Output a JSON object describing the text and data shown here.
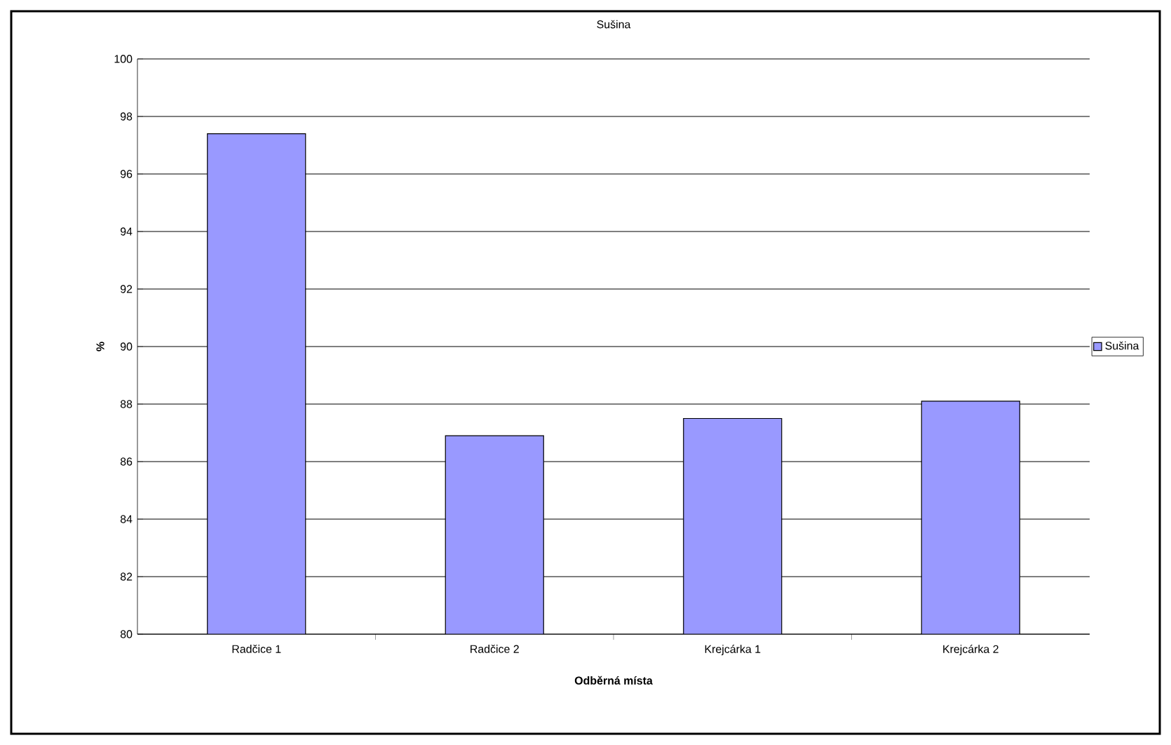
{
  "chart_data": {
    "type": "bar",
    "title": "Sušina",
    "xlabel": "Odběrná místa",
    "ylabel": "%",
    "categories": [
      "Radčice 1",
      "Radčice 2",
      "Krejcárka 1",
      "Krejcárka 2"
    ],
    "series": [
      {
        "name": "Sušina",
        "color": "#9999ff",
        "values": [
          97.4,
          86.9,
          87.5,
          88.1
        ]
      }
    ],
    "ylim": [
      80,
      100
    ],
    "yticks": [
      80,
      82,
      84,
      86,
      88,
      90,
      92,
      94,
      96,
      98,
      100
    ],
    "grid": "y",
    "legend": "right"
  }
}
